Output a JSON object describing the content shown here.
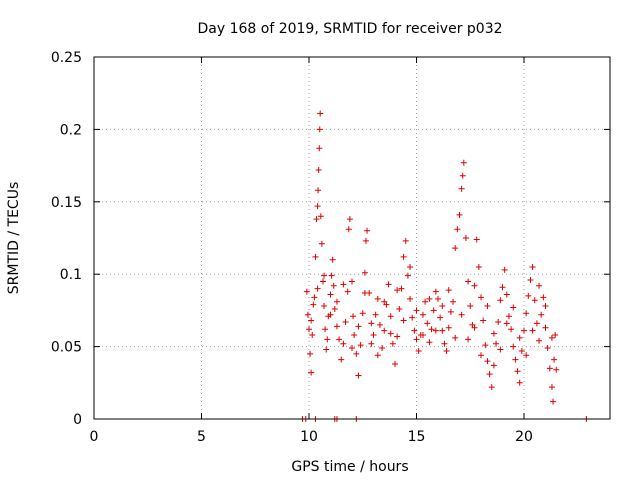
{
  "chart_data": {
    "type": "scatter",
    "title": "Day 168 of 2019, SRMTID for receiver p032",
    "xlabel": "GPS time / hours",
    "ylabel": "SRMTID / TECUs",
    "xlim": [
      0,
      24
    ],
    "ylim": [
      0,
      0.25
    ],
    "xticks": [
      0,
      5,
      10,
      15,
      20
    ],
    "xtick_labels": [
      "0",
      "5",
      "10",
      "15",
      "20"
    ],
    "yticks": [
      0,
      0.05,
      0.1,
      0.15,
      0.2,
      0.25
    ],
    "ytick_labels": [
      "0",
      "0.05",
      "0.1",
      "0.15",
      "0.2",
      "0.25"
    ],
    "grid": true,
    "marker": "plus",
    "color": "#e00000",
    "series": [
      {
        "name": "SRMTID",
        "points": [
          [
            9.7,
            0.0
          ],
          [
            9.85,
            0.0
          ],
          [
            10.3,
            0.0
          ],
          [
            11.2,
            0.0
          ],
          [
            11.3,
            0.0
          ],
          [
            12.2,
            0.0
          ],
          [
            22.9,
            0.0
          ],
          [
            9.9,
            0.088
          ],
          [
            9.95,
            0.072
          ],
          [
            10.0,
            0.062
          ],
          [
            10.05,
            0.045
          ],
          [
            10.1,
            0.032
          ],
          [
            10.15,
            0.058
          ],
          [
            10.2,
            0.079
          ],
          [
            10.25,
            0.084
          ],
          [
            10.3,
            0.112
          ],
          [
            10.35,
            0.138
          ],
          [
            10.4,
            0.147
          ],
          [
            10.42,
            0.158
          ],
          [
            10.45,
            0.172
          ],
          [
            10.48,
            0.187
          ],
          [
            10.5,
            0.2
          ],
          [
            10.52,
            0.211
          ],
          [
            10.55,
            0.14
          ],
          [
            10.6,
            0.121
          ],
          [
            10.65,
            0.095
          ],
          [
            10.7,
            0.078
          ],
          [
            10.75,
            0.062
          ],
          [
            10.8,
            0.048
          ],
          [
            10.85,
            0.055
          ],
          [
            10.9,
            0.071
          ],
          [
            11.0,
            0.086
          ],
          [
            11.05,
            0.099
          ],
          [
            11.1,
            0.11
          ],
          [
            11.15,
            0.092
          ],
          [
            11.2,
            0.076
          ],
          [
            11.3,
            0.064
          ],
          [
            11.4,
            0.055
          ],
          [
            11.5,
            0.041
          ],
          [
            11.6,
            0.052
          ],
          [
            11.7,
            0.067
          ],
          [
            11.8,
            0.088
          ],
          [
            11.85,
            0.131
          ],
          [
            11.9,
            0.138
          ],
          [
            12.0,
            0.095
          ],
          [
            12.05,
            0.071
          ],
          [
            12.1,
            0.058
          ],
          [
            12.2,
            0.045
          ],
          [
            12.3,
            0.03
          ],
          [
            12.4,
            0.051
          ],
          [
            12.5,
            0.073
          ],
          [
            12.6,
            0.101
          ],
          [
            12.65,
            0.123
          ],
          [
            12.7,
            0.13
          ],
          [
            12.8,
            0.087
          ],
          [
            12.9,
            0.066
          ],
          [
            13.0,
            0.058
          ],
          [
            13.1,
            0.072
          ],
          [
            13.2,
            0.083
          ],
          [
            13.3,
            0.065
          ],
          [
            13.4,
            0.049
          ],
          [
            13.5,
            0.061
          ],
          [
            13.6,
            0.079
          ],
          [
            13.7,
            0.093
          ],
          [
            13.8,
            0.071
          ],
          [
            13.9,
            0.052
          ],
          [
            14.0,
            0.038
          ],
          [
            14.1,
            0.057
          ],
          [
            14.2,
            0.076
          ],
          [
            14.3,
            0.09
          ],
          [
            14.4,
            0.112
          ],
          [
            14.5,
            0.123
          ],
          [
            14.6,
            0.099
          ],
          [
            14.7,
            0.083
          ],
          [
            14.8,
            0.07
          ],
          [
            14.9,
            0.061
          ],
          [
            15.0,
            0.055
          ],
          [
            15.1,
            0.047
          ],
          [
            15.2,
            0.058
          ],
          [
            15.3,
            0.072
          ],
          [
            15.4,
            0.081
          ],
          [
            15.5,
            0.066
          ],
          [
            15.6,
            0.053
          ],
          [
            15.7,
            0.062
          ],
          [
            15.8,
            0.075
          ],
          [
            15.9,
            0.088
          ],
          [
            16.0,
            0.083
          ],
          [
            16.1,
            0.07
          ],
          [
            16.2,
            0.061
          ],
          [
            16.3,
            0.052
          ],
          [
            16.4,
            0.047
          ],
          [
            16.5,
            0.063
          ],
          [
            16.6,
            0.074
          ],
          [
            16.7,
            0.081
          ],
          [
            16.8,
            0.118
          ],
          [
            16.9,
            0.131
          ],
          [
            17.0,
            0.141
          ],
          [
            17.1,
            0.159
          ],
          [
            17.15,
            0.168
          ],
          [
            17.2,
            0.177
          ],
          [
            17.3,
            0.125
          ],
          [
            17.4,
            0.095
          ],
          [
            17.5,
            0.078
          ],
          [
            17.6,
            0.065
          ],
          [
            17.7,
            0.092
          ],
          [
            17.8,
            0.124
          ],
          [
            17.9,
            0.105
          ],
          [
            18.0,
            0.084
          ],
          [
            18.1,
            0.068
          ],
          [
            18.2,
            0.051
          ],
          [
            18.3,
            0.04
          ],
          [
            18.4,
            0.031
          ],
          [
            18.5,
            0.022
          ],
          [
            18.6,
            0.037
          ],
          [
            18.7,
            0.052
          ],
          [
            18.8,
            0.067
          ],
          [
            18.9,
            0.082
          ],
          [
            19.0,
            0.091
          ],
          [
            19.1,
            0.103
          ],
          [
            19.2,
            0.086
          ],
          [
            19.3,
            0.071
          ],
          [
            19.4,
            0.062
          ],
          [
            19.5,
            0.05
          ],
          [
            19.6,
            0.041
          ],
          [
            19.7,
            0.033
          ],
          [
            19.8,
            0.025
          ],
          [
            19.9,
            0.047
          ],
          [
            20.0,
            0.061
          ],
          [
            20.1,
            0.073
          ],
          [
            20.2,
            0.085
          ],
          [
            20.3,
            0.096
          ],
          [
            20.4,
            0.105
          ],
          [
            20.5,
            0.082
          ],
          [
            20.6,
            0.066
          ],
          [
            20.7,
            0.054
          ],
          [
            20.8,
            0.072
          ],
          [
            20.9,
            0.084
          ],
          [
            21.0,
            0.063
          ],
          [
            21.1,
            0.049
          ],
          [
            21.2,
            0.035
          ],
          [
            21.3,
            0.022
          ],
          [
            21.35,
            0.012
          ],
          [
            21.4,
            0.041
          ],
          [
            21.45,
            0.058
          ],
          [
            21.5,
            0.034
          ],
          [
            10.1,
            0.068
          ],
          [
            10.4,
            0.09
          ],
          [
            10.7,
            0.099
          ],
          [
            11.0,
            0.072
          ],
          [
            11.3,
            0.081
          ],
          [
            11.6,
            0.093
          ],
          [
            12.0,
            0.049
          ],
          [
            12.3,
            0.064
          ],
          [
            12.6,
            0.087
          ],
          [
            12.9,
            0.052
          ],
          [
            13.2,
            0.044
          ],
          [
            13.5,
            0.081
          ],
          [
            13.8,
            0.059
          ],
          [
            14.1,
            0.089
          ],
          [
            14.4,
            0.068
          ],
          [
            14.7,
            0.105
          ],
          [
            15.0,
            0.075
          ],
          [
            15.3,
            0.058
          ],
          [
            15.6,
            0.083
          ],
          [
            15.9,
            0.061
          ],
          [
            16.2,
            0.078
          ],
          [
            16.5,
            0.089
          ],
          [
            16.8,
            0.056
          ],
          [
            17.1,
            0.072
          ],
          [
            17.4,
            0.055
          ],
          [
            17.7,
            0.063
          ],
          [
            18.0,
            0.044
          ],
          [
            18.3,
            0.078
          ],
          [
            18.6,
            0.059
          ],
          [
            18.9,
            0.048
          ],
          [
            19.2,
            0.066
          ],
          [
            19.5,
            0.077
          ],
          [
            19.8,
            0.056
          ],
          [
            20.1,
            0.044
          ],
          [
            20.4,
            0.061
          ],
          [
            20.7,
            0.092
          ],
          [
            21.0,
            0.078
          ],
          [
            21.3,
            0.056
          ]
        ]
      }
    ]
  }
}
